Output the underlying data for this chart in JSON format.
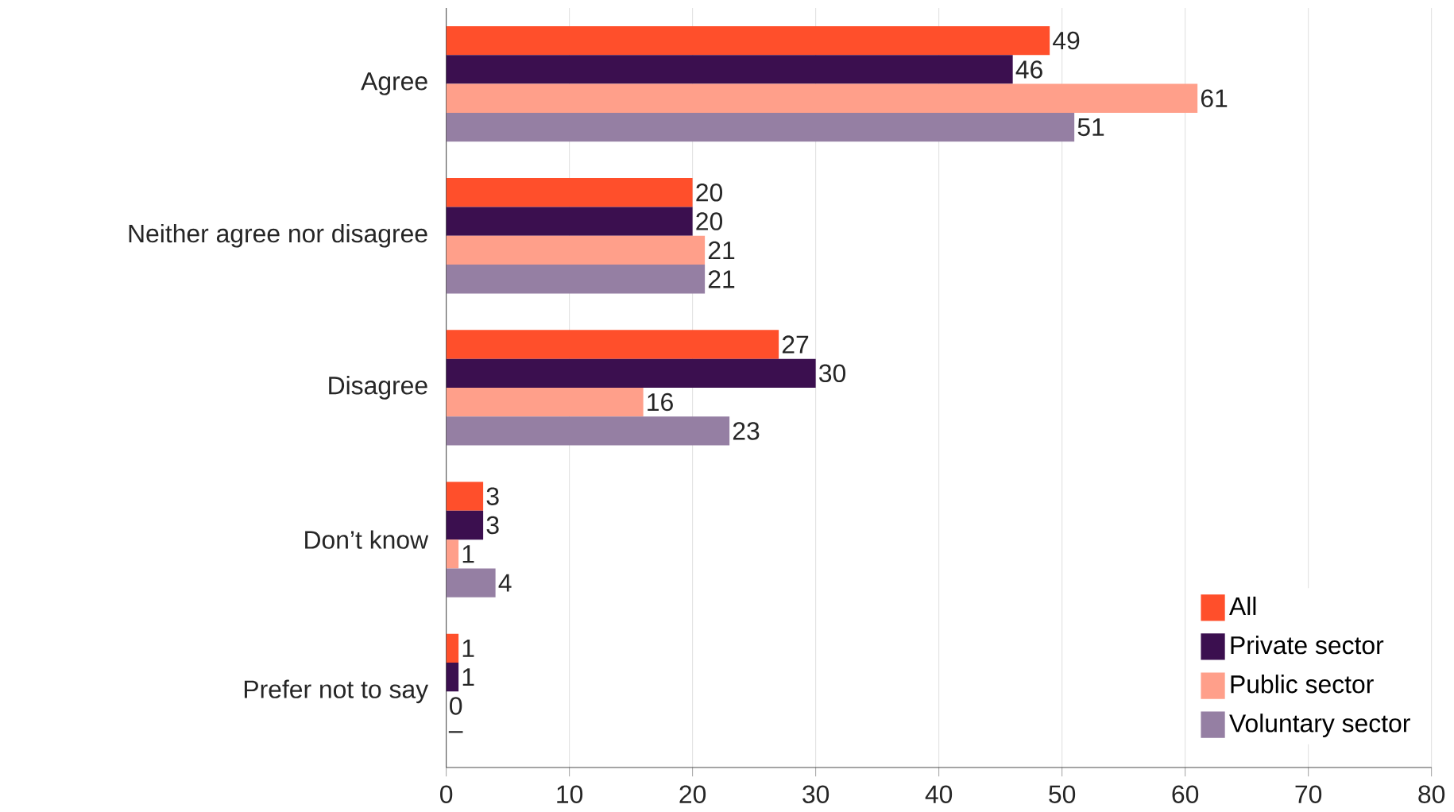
{
  "chart_data": {
    "type": "bar",
    "orientation": "horizontal",
    "categories": [
      "Agree",
      "Neither agree nor disagree",
      "Disagree",
      "Don’t know",
      "Prefer not to say"
    ],
    "series": [
      {
        "name": "All",
        "color": "#ff4f2b",
        "values": [
          49,
          20,
          27,
          3,
          1
        ],
        "value_labels": [
          "49",
          "20",
          "27",
          "3",
          "1"
        ]
      },
      {
        "name": "Private sector",
        "color": "#3b0f4f",
        "values": [
          46,
          20,
          30,
          3,
          1
        ],
        "value_labels": [
          "46",
          "20",
          "30",
          "3",
          "1"
        ]
      },
      {
        "name": "Public sector",
        "color": "#ff9f8a",
        "values": [
          61,
          21,
          16,
          1,
          0
        ],
        "value_labels": [
          "61",
          "21",
          "16",
          "1",
          "0"
        ]
      },
      {
        "name": "Voluntary sector",
        "color": "#957fa3",
        "values": [
          51,
          21,
          23,
          4,
          null
        ],
        "value_labels": [
          "51",
          "21",
          "23",
          "4",
          "–"
        ]
      }
    ],
    "xlim": [
      0,
      80
    ],
    "xticks": [
      0,
      10,
      20,
      30,
      40,
      50,
      60,
      70,
      80
    ],
    "grid": "x",
    "legend": "bottom right"
  }
}
